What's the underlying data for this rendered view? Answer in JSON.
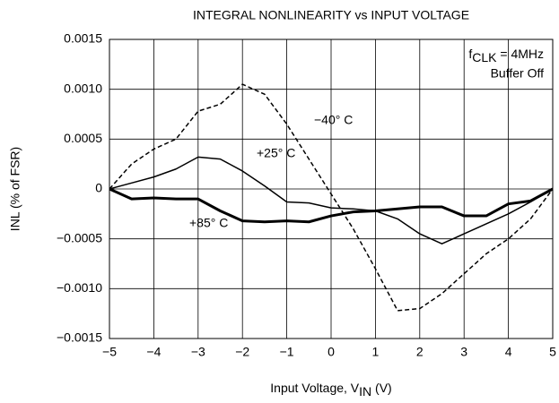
{
  "chart_data": {
    "type": "line",
    "title": "INTEGRAL NONLINEARITY vs INPUT VOLTAGE",
    "ylabel": "INL (% of FSR)",
    "xlabel": {
      "text": "Input Voltage, V",
      "sub": "IN",
      "tail": " (V)"
    },
    "annotations": [
      {
        "text": "f",
        "sub": "CLK",
        "tail": " = 4MHz"
      },
      {
        "text": "Buffer Off"
      }
    ],
    "x": [
      -5,
      -4.5,
      -4,
      -3.5,
      -3,
      -2.5,
      -2,
      -1.5,
      -1,
      -0.5,
      0,
      0.5,
      1,
      1.5,
      2,
      2.5,
      3,
      3.5,
      4,
      4.5,
      5
    ],
    "series": [
      {
        "name": "−40° C",
        "color": "#000000",
        "line_style": "dashed",
        "values": [
          0,
          0.00025,
          0.0004,
          0.0005,
          0.00078,
          0.00085,
          0.00105,
          0.00095,
          0.00065,
          0.0003,
          -5e-05,
          -0.0004,
          -0.0008,
          -0.00122,
          -0.0012,
          -0.00105,
          -0.00085,
          -0.00065,
          -0.0005,
          -0.0003,
          0
        ]
      },
      {
        "name": "+25° C",
        "color": "#000000",
        "line_style": "solid",
        "values": [
          0,
          6e-05,
          0.00012,
          0.0002,
          0.00032,
          0.0003,
          0.00018,
          3e-05,
          -0.00013,
          -0.00014,
          -0.00019,
          -0.0002,
          -0.00022,
          -0.0003,
          -0.00045,
          -0.00055,
          -0.00045,
          -0.00035,
          -0.00025,
          -0.00013,
          0
        ]
      },
      {
        "name": "+85° C",
        "color": "#000000",
        "line_style": "thick",
        "values": [
          0,
          -0.0001,
          -9e-05,
          -0.0001,
          -0.0001,
          -0.00022,
          -0.00032,
          -0.00033,
          -0.00032,
          -0.00033,
          -0.00027,
          -0.00023,
          -0.00022,
          -0.0002,
          -0.00018,
          -0.00018,
          -0.00027,
          -0.00027,
          -0.00015,
          -0.00012,
          0
        ]
      }
    ],
    "xlim": [
      -5,
      5
    ],
    "xticks": [
      {
        "value": -5,
        "label": "−5"
      },
      {
        "value": -4,
        "label": "−4"
      },
      {
        "value": -3,
        "label": "−3"
      },
      {
        "value": -2,
        "label": "−2"
      },
      {
        "value": -1,
        "label": "−1"
      },
      0,
      1,
      2,
      3,
      4,
      5
    ],
    "ylim": [
      -0.0015,
      0.0015
    ],
    "yticks": [
      {
        "value": -0.0015,
        "label": "−0.0015"
      },
      {
        "value": -0.001,
        "label": "−0.0010"
      },
      {
        "value": -0.0005,
        "label": "−0.0005"
      },
      0,
      0.0005,
      {
        "value": 0.001,
        "label": "0.0010"
      },
      0.0015
    ],
    "grid": true
  }
}
